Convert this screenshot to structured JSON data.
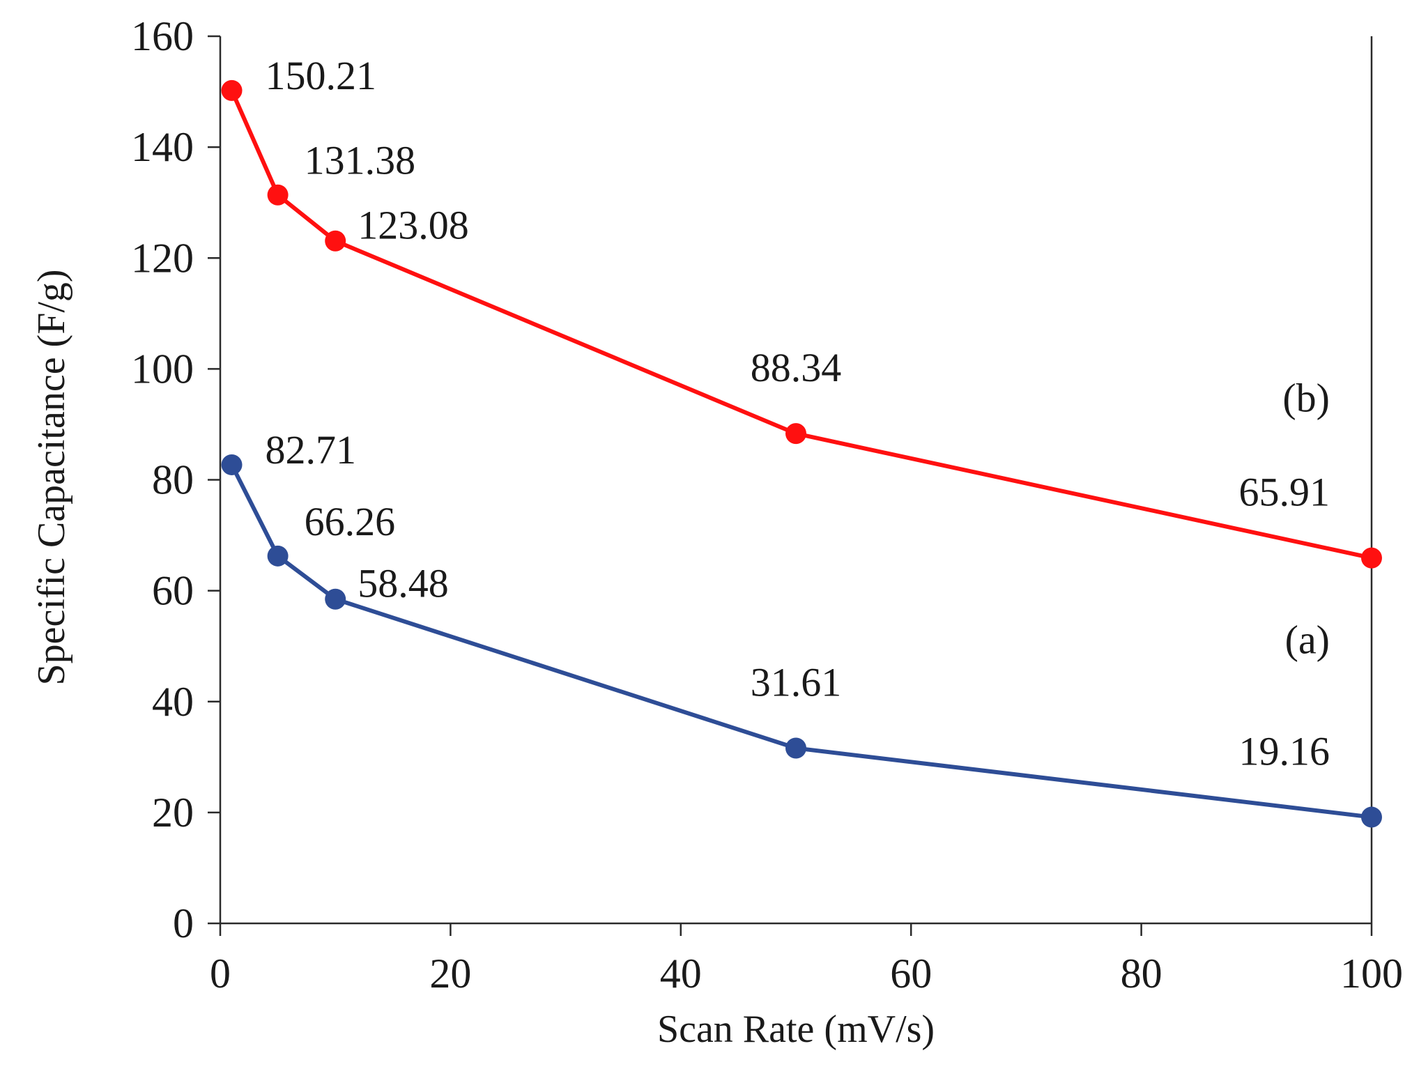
{
  "chart_data": {
    "type": "line",
    "title": "",
    "xlabel": "Scan Rate (mV/s)",
    "ylabel": "Specific Capacitance (F/g)",
    "xlim": [
      0,
      100
    ],
    "ylim": [
      0,
      160
    ],
    "xticks": [
      0,
      20,
      40,
      60,
      80,
      100
    ],
    "yticks": [
      0,
      20,
      40,
      60,
      80,
      100,
      120,
      140,
      160
    ],
    "grid": false,
    "x": [
      1,
      5,
      10,
      50,
      100
    ],
    "series": [
      {
        "tag": "(b)",
        "color": "#ff1010",
        "values": [
          150.21,
          131.38,
          123.08,
          88.34,
          65.91
        ],
        "labels": [
          "150.21",
          "131.38",
          "123.08",
          "88.34",
          "65.91"
        ]
      },
      {
        "tag": "(a)",
        "color": "#2e4d96",
        "values": [
          82.71,
          66.26,
          58.48,
          31.61,
          19.16
        ],
        "labels": [
          "82.71",
          "66.26",
          "58.48",
          "31.61",
          "19.16"
        ]
      }
    ]
  }
}
